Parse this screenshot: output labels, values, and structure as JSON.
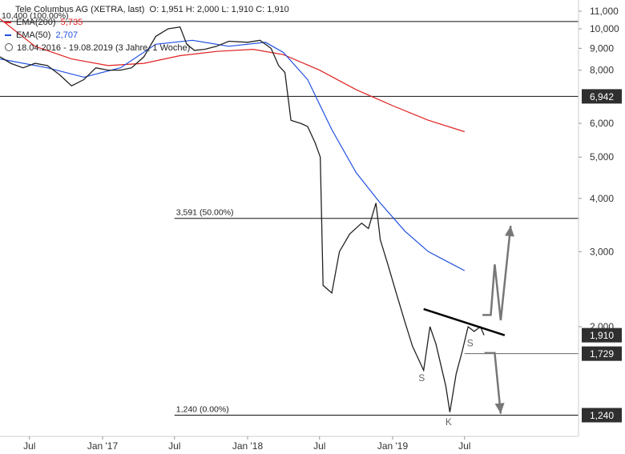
{
  "legend": {
    "title": "Tele Columbus AG (XETRA, last)",
    "ohlc": "O: 1,951  H: 2,000  L: 1,910  C: 1,910",
    "ema200_label": "EMA(200)",
    "ema200_value": "5,735",
    "ema50_label": "EMA(50)",
    "ema50_value": "2,707",
    "range": "18.04.2016 - 19.08.2019  (3 Jahre, 1 Woche)"
  },
  "colors": {
    "ema200": "#e02020",
    "ema50": "#2050e0",
    "price": "#222222",
    "arrow": "#777777",
    "label_box": "#2f2f2f"
  },
  "chart_data": {
    "type": "line",
    "y_scale": "log",
    "ylim": [
      1.16,
      11.3
    ],
    "y_ticks": [
      {
        "value": 11,
        "label": "11,000"
      },
      {
        "value": 10,
        "label": "10,000"
      },
      {
        "value": 9,
        "label": "9,000"
      },
      {
        "value": 8,
        "label": "8,000"
      },
      {
        "value": 6,
        "label": "6,000"
      },
      {
        "value": 5,
        "label": "5,000"
      },
      {
        "value": 4,
        "label": "4,000"
      },
      {
        "value": 3,
        "label": "3,000"
      },
      {
        "value": 2,
        "label": "2,000"
      }
    ],
    "x_range": [
      "2016-04-18",
      "2019-08-19"
    ],
    "x_ticks": [
      {
        "date": "2016-07-01",
        "label": "Jul"
      },
      {
        "date": "2017-01-01",
        "label": "Jan '17"
      },
      {
        "date": "2017-07-01",
        "label": "Jul"
      },
      {
        "date": "2018-01-01",
        "label": "Jan '18"
      },
      {
        "date": "2018-07-01",
        "label": "Jul"
      },
      {
        "date": "2019-01-01",
        "label": "Jan '19"
      },
      {
        "date": "2019-07-01",
        "label": "Jul"
      }
    ],
    "price_series": {
      "name": "Tele Columbus AG",
      "points": [
        [
          "2016-04-18",
          8.6
        ],
        [
          "2016-05-15",
          8.3
        ],
        [
          "2016-06-15",
          8.1
        ],
        [
          "2016-07-15",
          8.3
        ],
        [
          "2016-08-15",
          8.2
        ],
        [
          "2016-09-15",
          7.8
        ],
        [
          "2016-10-15",
          7.35
        ],
        [
          "2016-11-15",
          7.6
        ],
        [
          "2016-12-15",
          8.1
        ],
        [
          "2017-01-15",
          8.0
        ],
        [
          "2017-02-15",
          8.0
        ],
        [
          "2017-03-15",
          8.1
        ],
        [
          "2017-04-15",
          8.6
        ],
        [
          "2017-05-15",
          9.6
        ],
        [
          "2017-06-15",
          10.0
        ],
        [
          "2017-07-15",
          10.1
        ],
        [
          "2017-08-01",
          9.2
        ],
        [
          "2017-08-20",
          8.9
        ],
        [
          "2017-09-15",
          8.95
        ],
        [
          "2017-10-15",
          9.1
        ],
        [
          "2017-11-15",
          9.35
        ],
        [
          "2018-01-01",
          9.3
        ],
        [
          "2018-02-01",
          9.4
        ],
        [
          "2018-03-01",
          9.0
        ],
        [
          "2018-03-20",
          8.2
        ],
        [
          "2018-04-05",
          7.9
        ],
        [
          "2018-04-20",
          6.1
        ],
        [
          "2018-05-15",
          6.0
        ],
        [
          "2018-06-01",
          5.9
        ],
        [
          "2018-06-20",
          5.4
        ],
        [
          "2018-07-03",
          5.0
        ],
        [
          "2018-07-10",
          2.5
        ],
        [
          "2018-08-01",
          2.4
        ],
        [
          "2018-08-20",
          3.0
        ],
        [
          "2018-09-15",
          3.3
        ],
        [
          "2018-10-15",
          3.5
        ],
        [
          "2018-11-01",
          3.4
        ],
        [
          "2018-11-20",
          3.9
        ],
        [
          "2018-12-01",
          3.2
        ],
        [
          "2018-12-20",
          2.8
        ],
        [
          "2019-01-10",
          2.4
        ],
        [
          "2019-02-01",
          2.05
        ],
        [
          "2019-02-20",
          1.8
        ],
        [
          "2019-03-20",
          1.58
        ],
        [
          "2019-04-05",
          2.0
        ],
        [
          "2019-04-20",
          1.82
        ],
        [
          "2019-05-15",
          1.45
        ],
        [
          "2019-05-25",
          1.26
        ],
        [
          "2019-06-10",
          1.55
        ],
        [
          "2019-06-25",
          1.75
        ],
        [
          "2019-07-10",
          2.0
        ],
        [
          "2019-07-25",
          1.95
        ],
        [
          "2019-08-10",
          2.0
        ],
        [
          "2019-08-19",
          1.91
        ]
      ]
    },
    "series": [
      {
        "name": "EMA(200)",
        "color_key": "ema200",
        "points": [
          [
            "2016-04-18",
            10.55
          ],
          [
            "2016-07-15",
            9.1
          ],
          [
            "2016-10-15",
            8.5
          ],
          [
            "2017-01-15",
            8.2
          ],
          [
            "2017-04-15",
            8.3
          ],
          [
            "2017-07-15",
            8.65
          ],
          [
            "2017-10-15",
            8.85
          ],
          [
            "2018-01-15",
            8.95
          ],
          [
            "2018-04-01",
            8.7
          ],
          [
            "2018-07-01",
            8.0
          ],
          [
            "2018-10-01",
            7.2
          ],
          [
            "2019-01-01",
            6.6
          ],
          [
            "2019-04-01",
            6.1
          ],
          [
            "2019-07-01",
            5.735
          ]
        ]
      },
      {
        "name": "EMA(50)",
        "color_key": "ema50",
        "points": [
          [
            "2016-04-18",
            8.5
          ],
          [
            "2016-08-15",
            8.1
          ],
          [
            "2016-11-15",
            7.7
          ],
          [
            "2017-02-15",
            8.1
          ],
          [
            "2017-05-15",
            9.2
          ],
          [
            "2017-08-15",
            9.4
          ],
          [
            "2017-11-15",
            9.1
          ],
          [
            "2018-02-15",
            9.3
          ],
          [
            "2018-04-01",
            8.8
          ],
          [
            "2018-06-01",
            7.6
          ],
          [
            "2018-08-01",
            5.8
          ],
          [
            "2018-10-01",
            4.6
          ],
          [
            "2018-12-01",
            3.9
          ],
          [
            "2019-02-01",
            3.35
          ],
          [
            "2019-04-01",
            3.0
          ],
          [
            "2019-06-01",
            2.8
          ],
          [
            "2019-07-01",
            2.707
          ]
        ]
      }
    ],
    "horizontal_levels": [
      {
        "value": 10.4,
        "label": "10,400 (100.00%)",
        "x_start": "2016-04-18",
        "show_box": false
      },
      {
        "value": 6.942,
        "label": "",
        "x_start": "2016-04-18",
        "show_box": true,
        "box_label": "6,942"
      },
      {
        "value": 3.591,
        "label": "3,591 (50.00%)",
        "x_start": "2017-07-01",
        "show_box": false
      },
      {
        "value": 1.729,
        "label": "",
        "x_start": "2019-07-01",
        "show_box": true,
        "box_label": "1,729"
      },
      {
        "value": 1.24,
        "label": "1,240 (0.00%)",
        "x_start": "2017-07-01",
        "show_box": true,
        "box_label": "1,240"
      }
    ],
    "trendline": {
      "from": [
        "2019-03-20",
        2.2
      ],
      "to": [
        "2019-10-10",
        1.91
      ],
      "box_label": "1,910"
    },
    "annotations": [
      {
        "text": "S",
        "date": "2019-03-15",
        "value": 1.49
      },
      {
        "text": "K",
        "date": "2019-05-22",
        "value": 1.175
      },
      {
        "text": "S",
        "date": "2019-07-15",
        "value": 1.8
      }
    ],
    "scenario_up": [
      [
        "2019-08-15",
        2.13
      ],
      [
        "2019-09-05",
        2.13
      ],
      [
        "2019-09-15",
        2.8
      ],
      [
        "2019-09-30",
        2.07
      ],
      [
        "2019-10-25",
        3.45
      ]
    ],
    "scenario_down": [
      [
        "2019-08-20",
        1.735
      ],
      [
        "2019-09-15",
        1.735
      ],
      [
        "2019-09-30",
        1.25
      ]
    ]
  }
}
